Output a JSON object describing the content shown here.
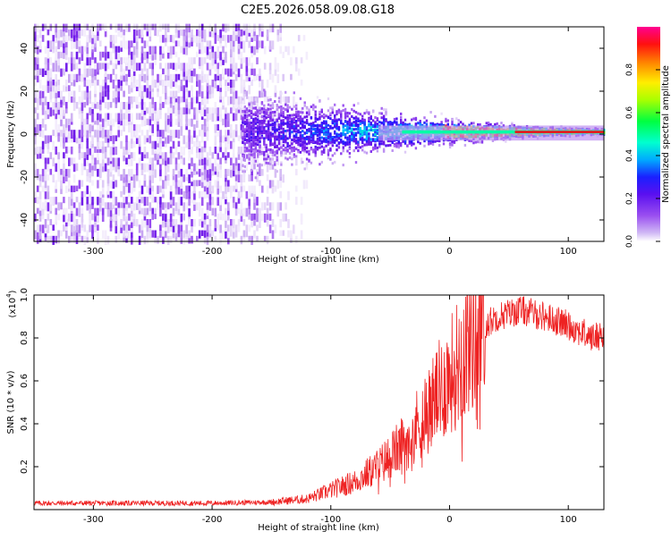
{
  "title": "C2E5.2026.058.09.08.G18",
  "colors": {
    "spectrum_ramp": [
      "#ffffff",
      "#cdb0f2",
      "#9a4ff0",
      "#6a14e8",
      "#2a12ff",
      "#00c8ff",
      "#00ffb0",
      "#40ff00",
      "#ffff00",
      "#ff9000",
      "#ff0000",
      "#ff0080"
    ],
    "snr_line": "#ee2222",
    "axis": "#000000"
  },
  "chart_data": [
    {
      "type": "heatmap",
      "name": "spectrogram",
      "xlabel": "Height of straight line (km)",
      "ylabel": "Frequency (Hz)",
      "xlim": [
        -350,
        130
      ],
      "ylim": [
        -50,
        50
      ],
      "xticks": [
        -300,
        -200,
        -100,
        0,
        100
      ],
      "yticks": [
        -40,
        -20,
        0,
        20,
        40
      ],
      "description_of_signal": {
        "noise_region_km": [
          -350,
          -175
        ],
        "signal_onset_km": -175,
        "carrier_center_hz": 1,
        "carrier_band_hz": [
          -3,
          4
        ]
      },
      "colorbar": {
        "label": "Normalized spectral amplitude",
        "range": [
          0.0,
          1.0
        ],
        "ticks": [
          "0.0",
          "0.2",
          "0.4",
          "0.6",
          "0.8"
        ]
      }
    },
    {
      "type": "line",
      "name": "snr",
      "xlabel": "Height of straight line (km)",
      "ylabel": "SNR (10 * v/v)",
      "scale_label_main": "(x10",
      "scale_label_exp": "4",
      "scale_label_close": ")",
      "xlim": [
        -350,
        130
      ],
      "ylim": [
        0.0,
        1.0
      ],
      "xticks": [
        -300,
        -200,
        -100,
        0,
        100
      ],
      "yticks": [
        "0.2",
        "0.4",
        "0.6",
        "0.8",
        "1.0"
      ],
      "series": [
        {
          "name": "SNR",
          "x": [
            -350,
            -200,
            -150,
            -120,
            -100,
            -80,
            -60,
            -40,
            -20,
            0,
            20,
            40,
            60,
            80,
            100,
            120,
            130
          ],
          "y": [
            0.03,
            0.03,
            0.035,
            0.05,
            0.09,
            0.13,
            0.2,
            0.3,
            0.45,
            0.62,
            0.82,
            0.9,
            0.93,
            0.9,
            0.86,
            0.8,
            0.82
          ]
        }
      ]
    }
  ]
}
